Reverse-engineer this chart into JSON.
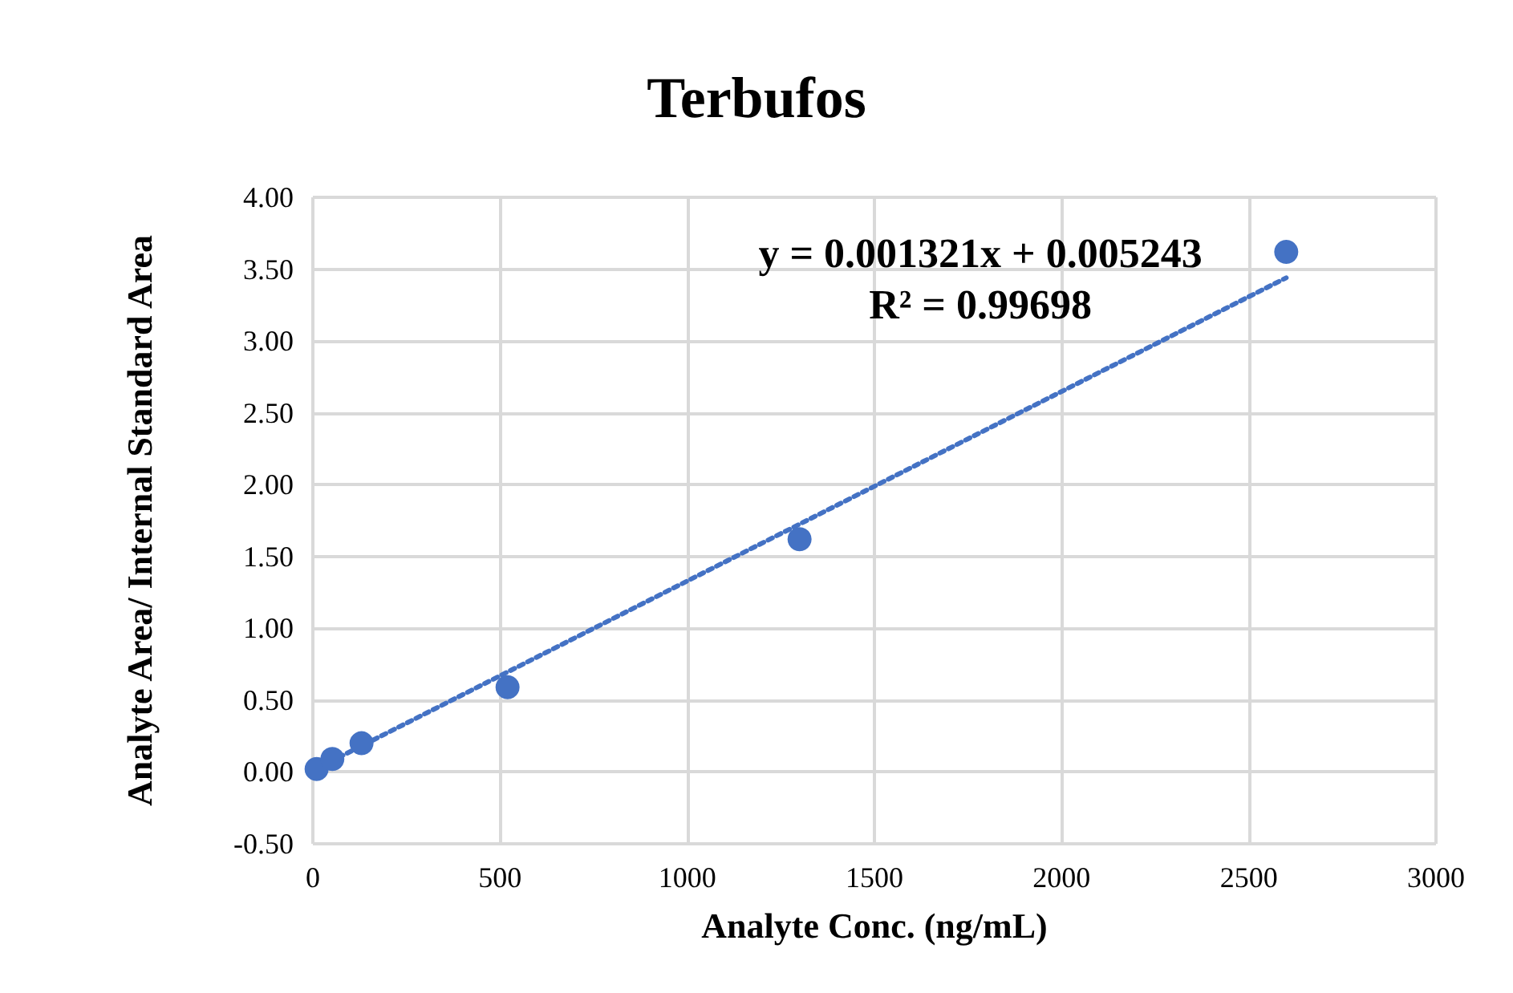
{
  "chart_data": {
    "type": "scatter",
    "title": "Terbufos",
    "xlabel": "Analyte Conc. (ng/mL)",
    "ylabel": "Analyte Area/ Internal Standard Area",
    "annotations": [
      "y = 0.001321x + 0.005243",
      "R² = 0.99698"
    ],
    "series": [
      {
        "color": "#4472c4",
        "x": [
          10,
          52,
          130,
          520,
          1300,
          2600
        ],
        "values": [
          0.02,
          0.09,
          0.2,
          0.59,
          1.62,
          3.62
        ],
        "marker": "circle"
      },
      {
        "type": "line",
        "color": "#4472c4",
        "x": [
          0,
          2600
        ],
        "values": [
          0.01,
          3.44
        ],
        "line_style": "dotted",
        "marker": "none"
      }
    ],
    "xlim": [
      0,
      3000
    ],
    "xticks": [
      0,
      500,
      1000,
      1500,
      2000,
      2500,
      3000
    ],
    "ylim": [
      -0.5,
      4
    ],
    "yticks": [
      {
        "value": -0.5,
        "label": "-0.50"
      },
      {
        "value": 0,
        "label": "0.00"
      },
      {
        "value": 0.5,
        "label": "0.50"
      },
      {
        "value": 1,
        "label": "1.00"
      },
      {
        "value": 1.5,
        "label": "1.50"
      },
      {
        "value": 2,
        "label": "2.00"
      },
      {
        "value": 2.5,
        "label": "2.50"
      },
      {
        "value": 3,
        "label": "3.00"
      },
      {
        "value": 3.5,
        "label": "3.50"
      },
      {
        "value": 4,
        "label": "4.00"
      }
    ],
    "grid": true
  }
}
